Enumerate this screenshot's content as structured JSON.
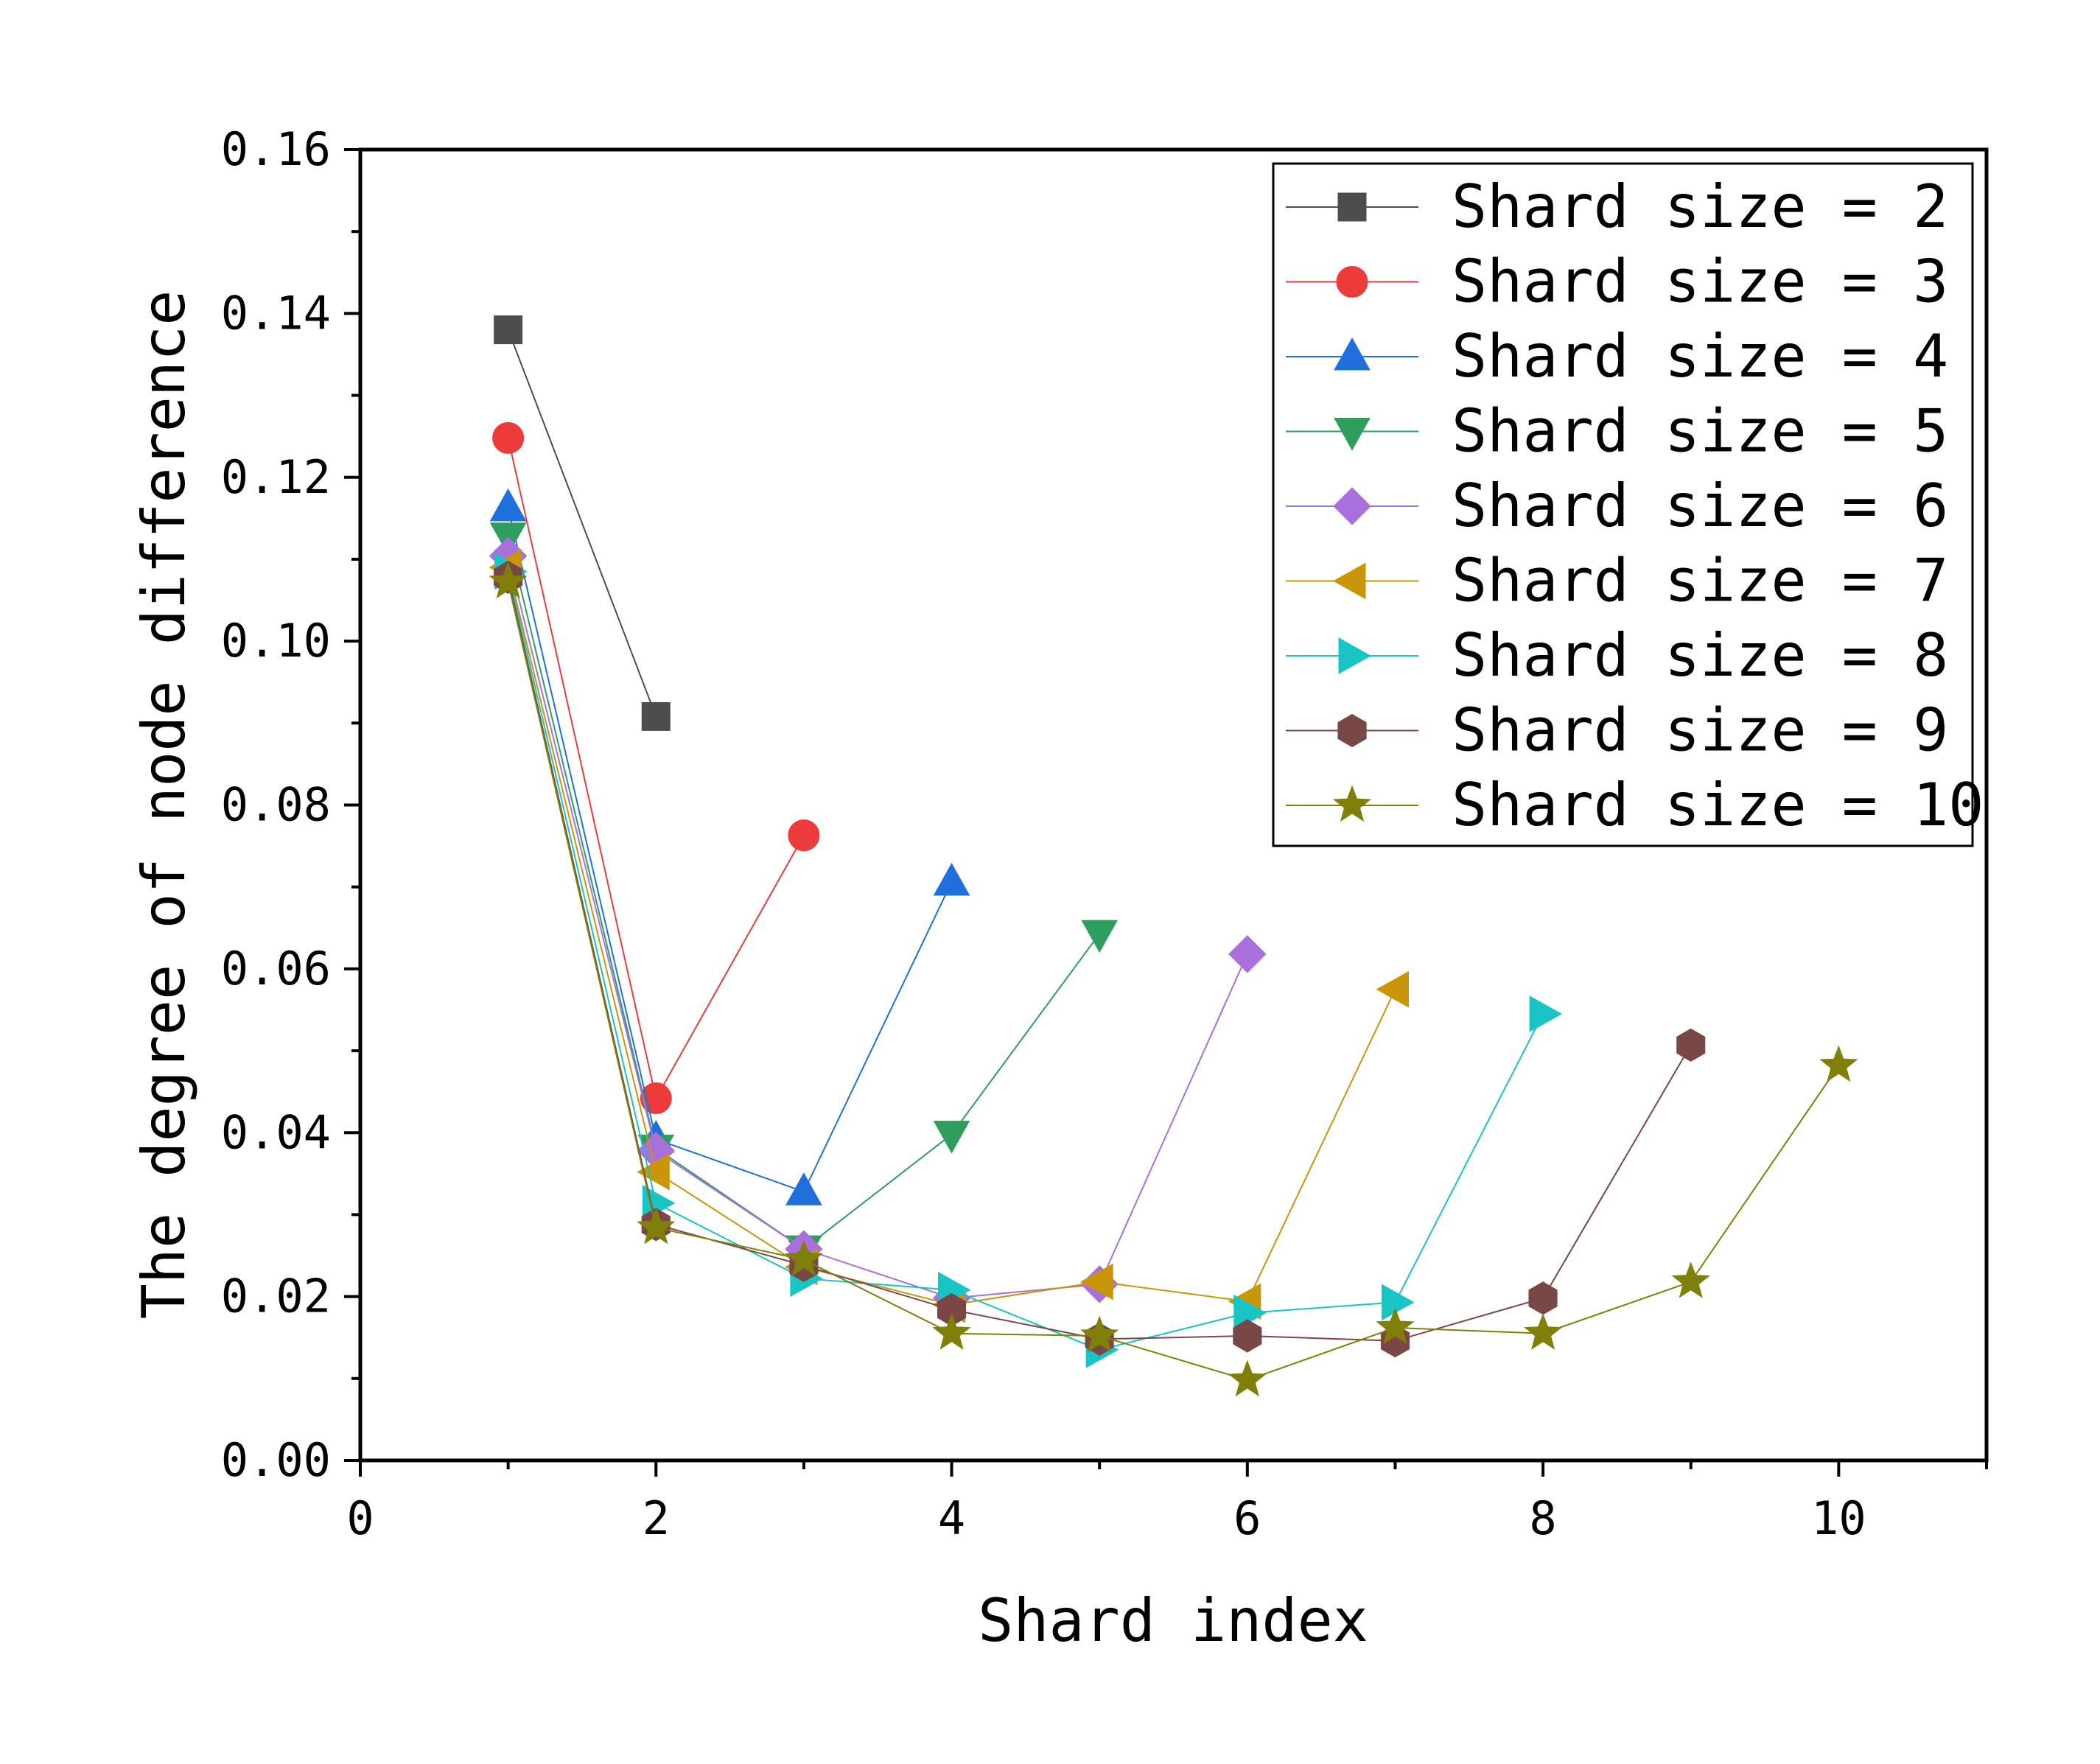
{
  "chart_data": {
    "type": "line",
    "xlabel": "Shard index",
    "ylabel": "The degree of node difference",
    "xlim": [
      0,
      11
    ],
    "ylim": [
      0,
      0.16
    ],
    "xticks": [
      "0",
      "2",
      "4",
      "6",
      "8",
      "10"
    ],
    "xtick_values": [
      0,
      2,
      4,
      6,
      8,
      10
    ],
    "yticks": [
      "0.00",
      "0.02",
      "0.04",
      "0.06",
      "0.08",
      "0.10",
      "0.12",
      "0.14",
      "0.16"
    ],
    "ytick_values": [
      0,
      0.02,
      0.04,
      0.06,
      0.08,
      0.1,
      0.12,
      0.14,
      0.16
    ],
    "grid": false,
    "legend_position": "top-right",
    "series": [
      {
        "name": "Shard size = 2",
        "color": "#4d4d4d",
        "marker": "square",
        "x": [
          1,
          2
        ],
        "y": [
          0.138,
          0.0908
        ]
      },
      {
        "name": "Shard size = 3",
        "color": "#ed3b3b",
        "marker": "circle",
        "x": [
          1,
          2,
          3
        ],
        "y": [
          0.1248,
          0.0442,
          0.0763
        ]
      },
      {
        "name": "Shard size = 4",
        "color": "#1f6fdc",
        "marker": "triangle-up",
        "x": [
          1,
          2,
          3,
          4
        ],
        "y": [
          0.1163,
          0.0392,
          0.0328,
          0.0706
        ]
      },
      {
        "name": "Shard size = 5",
        "color": "#2e9e5e",
        "marker": "triangle-down",
        "x": [
          1,
          2,
          3,
          4,
          5
        ],
        "y": [
          0.1128,
          0.0381,
          0.0258,
          0.0398,
          0.0643
        ]
      },
      {
        "name": "Shard size = 6",
        "color": "#a970dd",
        "marker": "diamond",
        "x": [
          1,
          2,
          3,
          4,
          5,
          6
        ],
        "y": [
          0.1104,
          0.0378,
          0.0258,
          0.0198,
          0.0215,
          0.0618
        ]
      },
      {
        "name": "Shard size = 7",
        "color": "#c9960a",
        "marker": "triangle-left",
        "x": [
          1,
          2,
          3,
          4,
          5,
          6,
          7
        ],
        "y": [
          0.109,
          0.0352,
          0.0236,
          0.019,
          0.0218,
          0.0194,
          0.0575
        ]
      },
      {
        "name": "Shard size = 8",
        "color": "#18c4c4",
        "marker": "triangle-right",
        "x": [
          1,
          2,
          3,
          4,
          5,
          6,
          7,
          8
        ],
        "y": [
          0.1085,
          0.0314,
          0.0222,
          0.0208,
          0.0135,
          0.018,
          0.0193,
          0.0545
        ]
      },
      {
        "name": "Shard size = 9",
        "color": "#7a4747",
        "marker": "hexagon",
        "x": [
          1,
          2,
          3,
          4,
          5,
          6,
          7,
          8,
          9
        ],
        "y": [
          0.1078,
          0.0288,
          0.0238,
          0.0184,
          0.0148,
          0.0152,
          0.0146,
          0.0198,
          0.0507
        ]
      },
      {
        "name": "Shard size = 10",
        "color": "#7f7f0a",
        "marker": "star",
        "x": [
          1,
          2,
          3,
          4,
          5,
          6,
          7,
          8,
          9,
          10
        ],
        "y": [
          0.1072,
          0.0284,
          0.0245,
          0.0155,
          0.0152,
          0.0098,
          0.0162,
          0.0155,
          0.0218,
          0.0482
        ]
      }
    ]
  }
}
